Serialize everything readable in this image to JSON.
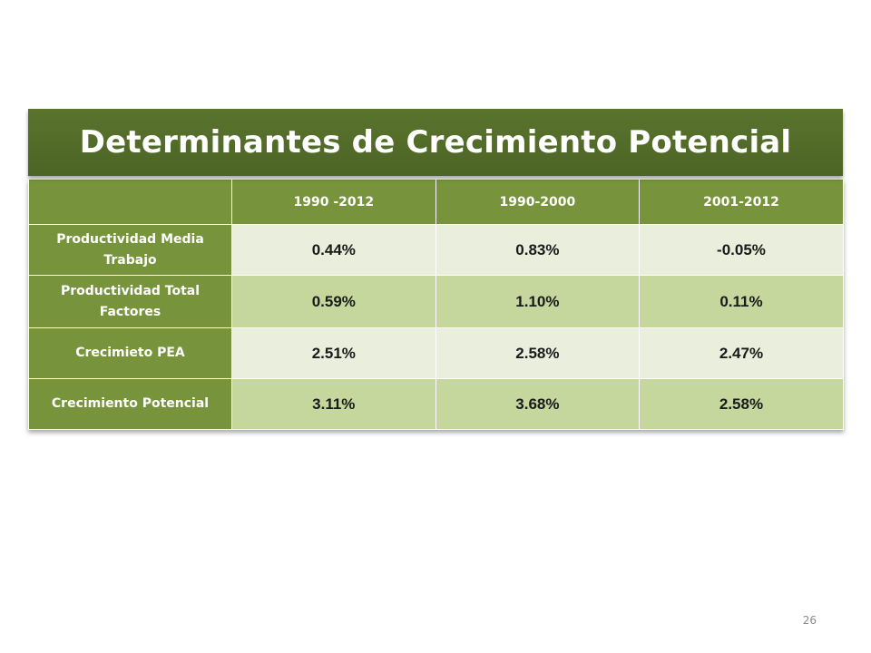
{
  "slide": {
    "title": "Determinantes de Crecimiento Potencial",
    "page_number": "26"
  },
  "table": {
    "columns": [
      "",
      "1990 -2012",
      "1990-2000",
      "2001-2012"
    ],
    "rows": [
      {
        "label": "Productividad Media Trabajo",
        "values": [
          "0.44%",
          "0.83%",
          "-0.05%"
        ]
      },
      {
        "label": "Productividad Total Factores",
        "values": [
          "0.59%",
          "1.10%",
          "0.11%"
        ]
      },
      {
        "label": "Crecimieto PEA",
        "values": [
          "2.51%",
          "2.58%",
          "2.47%"
        ]
      },
      {
        "label": "Crecimiento Potencial",
        "values": [
          "3.11%",
          "3.68%",
          "2.58%"
        ]
      }
    ]
  },
  "colors": {
    "title_bg": "#4f6728",
    "header_bg": "#77943c",
    "row_light": "#e9efdc",
    "row_dark": "#c5d79c"
  }
}
